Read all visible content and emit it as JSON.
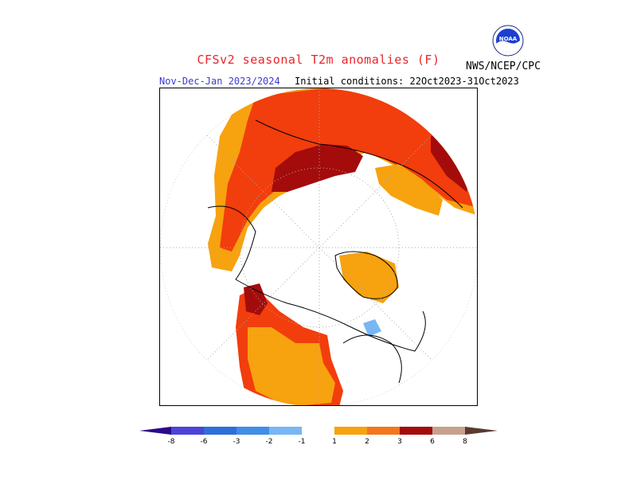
{
  "header": {
    "title": "CFSv2 seasonal T2m anomalies (F)",
    "agency": "NWS/NCEP/CPC",
    "logo_text": "NOAA",
    "valid_period": "Nov-Dec-Jan 2023/2024",
    "initial_conditions": "Initial conditions: 22Oct2023-31Oct2023"
  },
  "colors": {
    "neg8": "#2b0a8a",
    "neg6": "#4c44d6",
    "neg3": "#2e6fd8",
    "neg2": "#3f8fe6",
    "neg1": "#79b6f4",
    "neutral": "#ffffff",
    "pos1": "#f7a20f",
    "pos2": "#f4761c",
    "pos3": "#f23d0d",
    "pos6": "#a40c0c",
    "pos8": "#c8a08e",
    "pos_extreme": "#5a3a30"
  },
  "colorbar": {
    "labels": [
      "-8",
      "-6",
      "-3",
      "-2",
      "-1",
      "1",
      "2",
      "3",
      "6",
      "8"
    ]
  }
}
